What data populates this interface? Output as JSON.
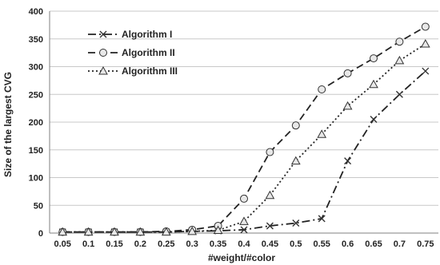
{
  "chart_data": {
    "type": "line",
    "xlabel": "#weight/#color",
    "ylabel": "Size of the largest CVG",
    "x": [
      0.05,
      0.1,
      0.15,
      0.2,
      0.25,
      0.3,
      0.35,
      0.4,
      0.45,
      0.5,
      0.55,
      0.6,
      0.65,
      0.7,
      0.75
    ],
    "x_tick_labels": [
      "0.05",
      "0.1",
      "0.15",
      "0.2",
      "0.25",
      "0.3",
      "0.35",
      "0.4",
      "0.45",
      "0.5",
      "0.55",
      "0.6",
      "0.65",
      "0.7",
      "0.75"
    ],
    "ylim": [
      0,
      400
    ],
    "y_ticks": [
      0,
      50,
      100,
      150,
      200,
      250,
      300,
      350,
      400
    ],
    "grid": true,
    "legend_position": "top-left",
    "series": [
      {
        "name": "Algorithm I",
        "marker": "x",
        "line_style": "dashdot",
        "values": [
          2,
          2,
          2,
          2,
          2,
          3,
          4,
          6,
          13,
          18,
          26,
          130,
          205,
          250,
          292
        ]
      },
      {
        "name": "Algorithm II",
        "marker": "circle",
        "line_style": "dashed",
        "values": [
          2,
          2,
          2,
          2,
          3,
          6,
          13,
          62,
          146,
          194,
          259,
          288,
          315,
          345,
          372
        ]
      },
      {
        "name": "Algorithm III",
        "marker": "triangle",
        "line_style": "dotted",
        "values": [
          2,
          2,
          2,
          2,
          2,
          3,
          5,
          21,
          68,
          130,
          178,
          229,
          268,
          311,
          341
        ]
      }
    ]
  }
}
